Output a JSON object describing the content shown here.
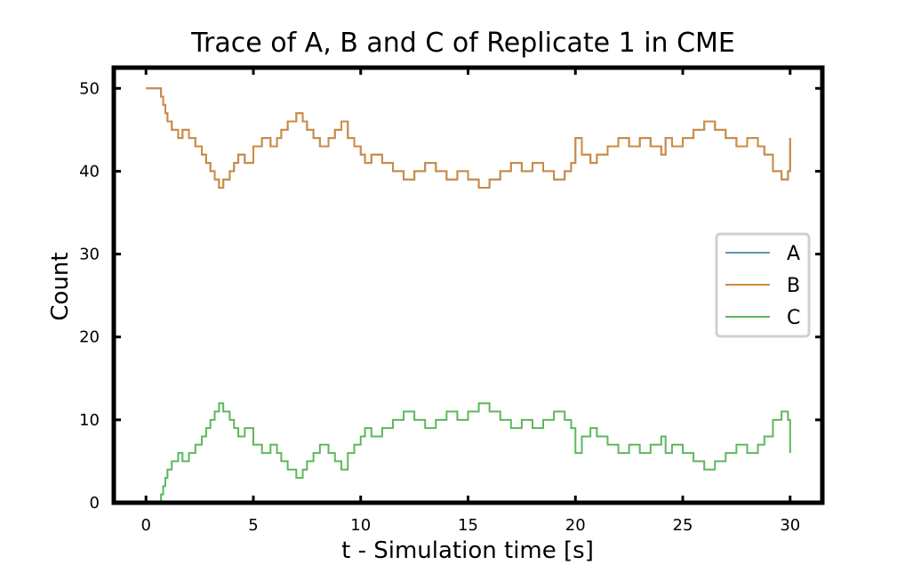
{
  "chart_data": {
    "type": "line",
    "title": "Trace of A, B and C of Replicate 1 in CME",
    "xlabel": "t - Simulation time [s]",
    "ylabel": "Count",
    "xlim": [
      -1.5,
      31.5
    ],
    "ylim": [
      0,
      52.5
    ],
    "xticks": [
      0,
      5,
      10,
      15,
      20,
      25,
      30
    ],
    "yticks": [
      0,
      10,
      20,
      30,
      40,
      50
    ],
    "grid": false,
    "legend_position": "center-right",
    "step": true,
    "series": [
      {
        "name": "A",
        "color": "#5b9bb5",
        "x": [
          0,
          0.7,
          0.8,
          0.9,
          1.0,
          1.2,
          1.5,
          1.7,
          2.0,
          2.3,
          2.6,
          2.8,
          3.0,
          3.2,
          3.4,
          3.6,
          3.9,
          4.1,
          4.3,
          4.6,
          5.0,
          5.4,
          5.8,
          6.1,
          6.3,
          6.6,
          7.0,
          7.3,
          7.5,
          7.8,
          8.1,
          8.5,
          8.8,
          9.1,
          9.4,
          9.7,
          10.0,
          10.2,
          10.5,
          11.0,
          11.5,
          12.0,
          12.5,
          13.0,
          13.5,
          14.0,
          14.5,
          15.0,
          15.5,
          16.0,
          16.5,
          17.0,
          17.5,
          18.0,
          18.5,
          19.0,
          19.5,
          19.8,
          20.0,
          20.3,
          20.7,
          21.0,
          21.5,
          22.0,
          22.5,
          23.0,
          23.5,
          24.0,
          24.2,
          24.5,
          25.0,
          25.5,
          26.0,
          26.5,
          27.0,
          27.5,
          28.0,
          28.5,
          28.8,
          29.2,
          29.6,
          29.9,
          30.0
        ],
        "values": [
          50,
          49,
          48,
          47,
          46,
          45,
          44,
          45,
          44,
          43,
          42,
          41,
          40,
          39,
          38,
          39,
          40,
          41,
          42,
          41,
          43,
          44,
          43,
          44,
          45,
          46,
          47,
          46,
          45,
          44,
          43,
          44,
          45,
          46,
          44,
          43,
          42,
          41,
          42,
          41,
          40,
          39,
          40,
          41,
          40,
          39,
          40,
          39,
          38,
          39,
          40,
          41,
          40,
          41,
          40,
          39,
          40,
          41,
          44,
          42,
          41,
          42,
          43,
          44,
          43,
          44,
          43,
          42,
          44,
          43,
          44,
          45,
          46,
          45,
          44,
          43,
          44,
          43,
          42,
          40,
          39,
          40,
          44
        ]
      },
      {
        "name": "B",
        "color": "#d08a3f",
        "x": [
          0,
          0.7,
          0.8,
          0.9,
          1.0,
          1.2,
          1.5,
          1.7,
          2.0,
          2.3,
          2.6,
          2.8,
          3.0,
          3.2,
          3.4,
          3.6,
          3.9,
          4.1,
          4.3,
          4.6,
          5.0,
          5.4,
          5.8,
          6.1,
          6.3,
          6.6,
          7.0,
          7.3,
          7.5,
          7.8,
          8.1,
          8.5,
          8.8,
          9.1,
          9.4,
          9.7,
          10.0,
          10.2,
          10.5,
          11.0,
          11.5,
          12.0,
          12.5,
          13.0,
          13.5,
          14.0,
          14.5,
          15.0,
          15.5,
          16.0,
          16.5,
          17.0,
          17.5,
          18.0,
          18.5,
          19.0,
          19.5,
          19.8,
          20.0,
          20.3,
          20.7,
          21.0,
          21.5,
          22.0,
          22.5,
          23.0,
          23.5,
          24.0,
          24.2,
          24.5,
          25.0,
          25.5,
          26.0,
          26.5,
          27.0,
          27.5,
          28.0,
          28.5,
          28.8,
          29.2,
          29.6,
          29.9,
          30.0
        ],
        "values": [
          50,
          49,
          48,
          47,
          46,
          45,
          44,
          45,
          44,
          43,
          42,
          41,
          40,
          39,
          38,
          39,
          40,
          41,
          42,
          41,
          43,
          44,
          43,
          44,
          45,
          46,
          47,
          46,
          45,
          44,
          43,
          44,
          45,
          46,
          44,
          43,
          42,
          41,
          42,
          41,
          40,
          39,
          40,
          41,
          40,
          39,
          40,
          39,
          38,
          39,
          40,
          41,
          40,
          41,
          40,
          39,
          40,
          41,
          44,
          42,
          41,
          42,
          43,
          44,
          43,
          44,
          43,
          42,
          44,
          43,
          44,
          45,
          46,
          45,
          44,
          43,
          44,
          43,
          42,
          40,
          39,
          40,
          44
        ]
      },
      {
        "name": "C",
        "color": "#5cb85c",
        "x": [
          0,
          0.7,
          0.8,
          0.9,
          1.0,
          1.2,
          1.5,
          1.7,
          2.0,
          2.3,
          2.6,
          2.8,
          3.0,
          3.2,
          3.4,
          3.6,
          3.9,
          4.1,
          4.3,
          4.6,
          5.0,
          5.4,
          5.8,
          6.1,
          6.3,
          6.6,
          7.0,
          7.3,
          7.5,
          7.8,
          8.1,
          8.5,
          8.8,
          9.1,
          9.4,
          9.7,
          10.0,
          10.2,
          10.5,
          11.0,
          11.5,
          12.0,
          12.5,
          13.0,
          13.5,
          14.0,
          14.5,
          15.0,
          15.5,
          16.0,
          16.5,
          17.0,
          17.5,
          18.0,
          18.5,
          19.0,
          19.5,
          19.8,
          20.0,
          20.3,
          20.7,
          21.0,
          21.5,
          22.0,
          22.5,
          23.0,
          23.5,
          24.0,
          24.2,
          24.5,
          25.0,
          25.5,
          26.0,
          26.5,
          27.0,
          27.5,
          28.0,
          28.5,
          28.8,
          29.2,
          29.6,
          29.9,
          30.0
        ],
        "values": [
          0,
          1,
          2,
          3,
          4,
          5,
          6,
          5,
          6,
          7,
          8,
          9,
          10,
          11,
          12,
          11,
          10,
          9,
          8,
          9,
          7,
          6,
          7,
          6,
          5,
          4,
          3,
          4,
          5,
          6,
          7,
          6,
          5,
          4,
          6,
          7,
          8,
          9,
          8,
          9,
          10,
          11,
          10,
          9,
          10,
          11,
          10,
          11,
          12,
          11,
          10,
          9,
          10,
          9,
          10,
          11,
          10,
          9,
          6,
          8,
          9,
          8,
          7,
          6,
          7,
          6,
          7,
          8,
          6,
          7,
          6,
          5,
          4,
          5,
          6,
          7,
          6,
          7,
          8,
          10,
          11,
          10,
          6
        ]
      }
    ]
  }
}
